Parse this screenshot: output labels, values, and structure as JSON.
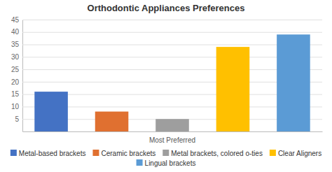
{
  "chart_data": {
    "type": "bar",
    "title": "Orthodontic Appliances Preferences",
    "xlabel": "Most Preferred",
    "categories": [
      "Metal-based brackets",
      "Ceramic brackets",
      "Metal brackets, colored o-ties",
      "Clear Aligners",
      "Lingual brackets"
    ],
    "values": [
      16,
      8,
      5,
      34,
      39
    ],
    "colors": [
      "#4472c4",
      "#e07030",
      "#9e9e9e",
      "#ffc000",
      "#5b9bd5"
    ],
    "ylim": [
      0,
      45
    ],
    "yticks": [
      5,
      10,
      15,
      20,
      25,
      30,
      35,
      40,
      45
    ],
    "grid": true,
    "legend": "bottom",
    "tick_labels": "y"
  }
}
